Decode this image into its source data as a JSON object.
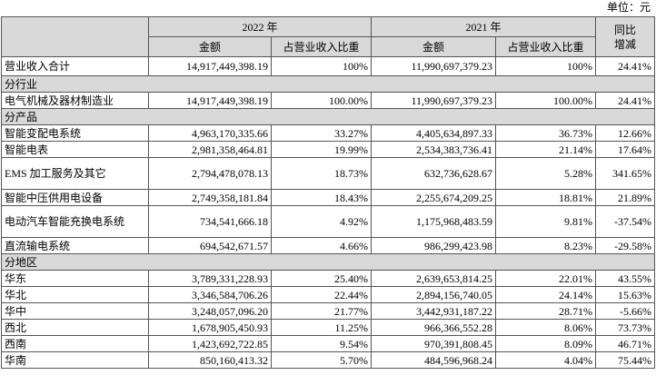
{
  "unit": "单位：元",
  "table": {
    "header": {
      "year_2022": "2022 年",
      "year_2021": "2021 年",
      "change": "同比增减",
      "columns": [
        "金额",
        "占营业收入比重",
        "金额",
        "占营业收入比重"
      ]
    },
    "rows": [
      [
        "营业收入合计",
        "14,917,449,398.19",
        "100%",
        "11,990,697,379.23",
        "100%",
        "24.41%"
      ],
      [
        "分行业"
      ],
      [
        "电气机械及器材制造业",
        "14,917,449,398.19",
        "100.00%",
        "11,990,697,379.23",
        "100.00%",
        "24.41%"
      ],
      [
        "分产品"
      ],
      [
        "智能变配电系统",
        "4,963,170,335.66",
        "33.27%",
        "4,405,634,897.33",
        "36.73%",
        "12.66%"
      ],
      [
        "智能电表",
        "2,981,358,464.81",
        "19.99%",
        "2,534,383,736.41",
        "21.14%",
        "17.64%"
      ],
      [
        "EMS 加工服务及其它",
        "2,794,478,078.13",
        "18.73%",
        "632,736,628.67",
        "5.28%",
        "341.65%"
      ],
      [
        "智能中压供用电设备",
        "2,749,358,181.84",
        "18.43%",
        "2,255,674,209.25",
        "18.81%",
        "21.89%"
      ],
      [
        "电动汽车智能充换电系统",
        "734,541,666.18",
        "4.92%",
        "1,175,968,483.59",
        "9.81%",
        "-37.54%"
      ],
      [
        "直流输电系统",
        "694,542,671.57",
        "4.66%",
        "986,299,423.98",
        "8.23%",
        "-29.58%"
      ],
      [
        "分地区"
      ],
      [
        "华东",
        "3,789,331,228.93",
        "25.40%",
        "2,639,653,814.25",
        "22.01%",
        "43.55%"
      ],
      [
        "华北",
        "3,346,584,706.26",
        "22.44%",
        "2,894,156,740.05",
        "24.14%",
        "15.63%"
      ],
      [
        "华中",
        "3,248,057,096.20",
        "21.77%",
        "3,442,931,187.22",
        "28.71%",
        "-5.66%"
      ],
      [
        "西北",
        "1,678,905,450.93",
        "11.25%",
        "966,366,552.28",
        "8.06%",
        "73.73%"
      ],
      [
        "西南",
        "1,423,692,722.85",
        "9.54%",
        "970,391,808.45",
        "8.09%",
        "46.71%"
      ],
      [
        "华南",
        "850,160,413.32",
        "5.70%",
        "484,596,968.24",
        "4.04%",
        "75.44%"
      ]
    ]
  }
}
